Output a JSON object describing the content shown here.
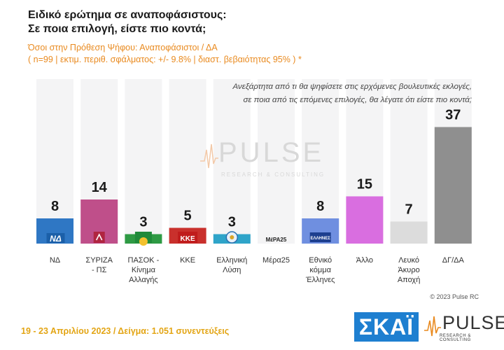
{
  "header": {
    "title_line1": "Ειδικό ερώτημα σε αναποφάσιστους:",
    "title_line2": "Σε ποια επιλογή, είστε πιο κοντά;",
    "subtitle_line1": "Όσοι στην Πρόθεση Ψήφου: Αναποφάσιστοι / ΔΑ",
    "subtitle_line2": "( n=99  |  εκτιμ. περιθ. σφάλματος: +/- 9.8%  |  διαστ. βεβαιότητας 95% ) *"
  },
  "question": {
    "line1": "Ανεξάρτητα από τι θα ψηφίσετε στις ερχόμενες βουλευτικές εκλογές,",
    "line2": "σε ποια από τις επόμενες επιλογές, θα λέγατε ότι είστε πιο κοντά;"
  },
  "watermark": {
    "word": "PULSE",
    "sub": "RESEARCH & CONSULTING"
  },
  "chart_data": {
    "type": "bar",
    "categories": [
      "ΝΔ",
      "ΣΥΡΙΖΑ\n- ΠΣ",
      "ΠΑΣΟΚ -\nΚίνημα\nΑλλαγής",
      "ΚΚΕ",
      "Ελληνική\nΛύση",
      "Μέρα25",
      "Εθνικό\nκόμμα\nΈλληνες",
      "Άλλο",
      "Λευκό\nΆκυρο\nΑποχή",
      "ΔΓ/ΔΑ"
    ],
    "values": [
      8,
      14,
      3,
      5,
      3,
      null,
      8,
      15,
      7,
      37
    ],
    "value_labels": [
      "8",
      "14",
      "3",
      "5",
      "3",
      "",
      "8",
      "15",
      "7",
      "37"
    ],
    "colors": [
      "#2f77c4",
      "#bf4f8a",
      "#2e9a44",
      "#c9302c",
      "#2fa4c9",
      "#f7c75a",
      "#6f8fe0",
      "#d96ee0",
      "#dcdcdc",
      "#8f8f8f"
    ],
    "logo_names": [
      "nd-logo-icon",
      "syriza-logo-icon",
      "pasok-logo-icon",
      "kke-logo-icon",
      "elliniki-lysi-logo-icon",
      "mera25-logo-icon",
      "ethniko-komma-ellines-logo-icon",
      "",
      "",
      ""
    ],
    "logo_texts": [
      "ΝΔ",
      "",
      "",
      "ΚΚΕ",
      "",
      "ΜέΡΑ25",
      "ΕΛΛΗΝΕΣ",
      "",
      "",
      ""
    ],
    "ylim": [
      0,
      40
    ],
    "grid": false
  },
  "footer": {
    "copyright": "© 2023 Pulse RC",
    "date_sample": "19 - 23  Απριλίου  2023  /  Δείγμα:  1.051 συνεντεύξεις",
    "skai_logo": "ΣΚΑΪ",
    "pulse_word": "PULSE",
    "pulse_sub": "RESEARCH & CONSULTING"
  }
}
